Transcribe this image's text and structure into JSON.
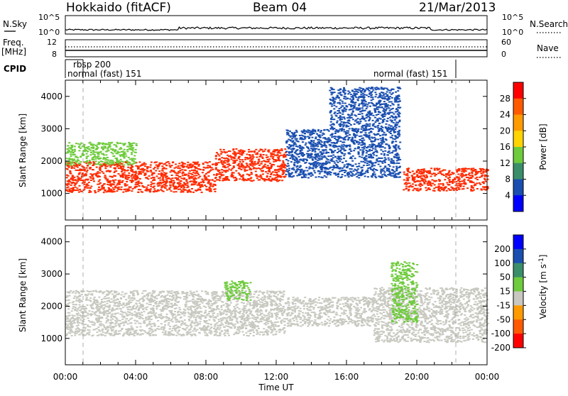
{
  "header": {
    "radar": "Hokkaido (fitACF)",
    "beam": "Beam 04",
    "date": "21/Mar/2013"
  },
  "noise_panel": {
    "left_label": "N.Sky",
    "right_label": "N.Search",
    "left_ticks": [
      "10^5",
      "10^0"
    ],
    "right_ticks": [
      "10^5",
      "10^0"
    ]
  },
  "freq_panel": {
    "left_label_top": "Freq.",
    "left_label_unit": "[MHz]",
    "left_ticks": [
      "12",
      "8"
    ],
    "right_label": "Nave",
    "right_ticks": [
      "60",
      "0"
    ]
  },
  "cpid_panel": {
    "label": "CPID",
    "segments": [
      {
        "name": "normal (fast) 151",
        "start_hour": 0.0
      },
      {
        "name": "rbsp 200",
        "start_hour": 1.0
      },
      {
        "name": "normal (fast) 151",
        "start_hour": 21.9
      }
    ]
  },
  "chart_data": [
    {
      "type": "heatmap",
      "parameter": "Power",
      "ylabel": "Slant Range [km]",
      "yticks": [
        1000,
        2000,
        3000,
        4000
      ],
      "ylim": [
        180,
        4500
      ],
      "xlim": [
        0,
        24
      ],
      "colorbar": {
        "label": "Power [dB]",
        "ticks": [
          "28",
          "24",
          "20",
          "16",
          "12",
          "8",
          "4"
        ],
        "colors": [
          "#ff0000",
          "#ff5a00",
          "#ff9a00",
          "#ffd400",
          "#6ecb3c",
          "#3a8f6a",
          "#1a4fb0",
          "#0000ff"
        ]
      },
      "regions": [
        {
          "level": "strong",
          "color": "#ff2a00",
          "time_start": 0.0,
          "time_end": 8.5,
          "range_start": 1050,
          "range_end": 2000
        },
        {
          "level": "strong",
          "color": "#ff2a00",
          "time_start": 8.5,
          "time_end": 12.5,
          "range_start": 1400,
          "range_end": 2400
        },
        {
          "level": "strong",
          "color": "#ff2a00",
          "time_start": 19.2,
          "time_end": 24.0,
          "range_start": 1100,
          "range_end": 1800
        },
        {
          "level": "medium",
          "color": "#6ecb3c",
          "time_start": 0.0,
          "time_end": 4.0,
          "range_start": 1900,
          "range_end": 2600
        },
        {
          "level": "weak",
          "color": "#1a4fb0",
          "time_start": 12.5,
          "time_end": 19.0,
          "range_start": 1500,
          "range_end": 3000
        },
        {
          "level": "weak",
          "color": "#1a4fb0",
          "time_start": 15.0,
          "time_end": 19.0,
          "range_start": 3000,
          "range_end": 4300
        }
      ]
    },
    {
      "type": "heatmap",
      "parameter": "Velocity",
      "ylabel": "Slant Range [km]",
      "yticks": [
        1000,
        2000,
        3000,
        4000
      ],
      "ylim": [
        180,
        4500
      ],
      "xlim": [
        0,
        24
      ],
      "xlabel": "Time UT",
      "xticks": [
        "00:00",
        "04:00",
        "08:00",
        "12:00",
        "16:00",
        "20:00",
        "00:00"
      ],
      "colorbar": {
        "label": "Velocity [m s^-1]",
        "ticks": [
          "200",
          "100",
          "50",
          "15",
          "-15",
          "-50",
          "-100",
          "-200"
        ],
        "colors": [
          "#0000ff",
          "#1a4fb0",
          "#3a8f6a",
          "#6ecb3c",
          "#c8c8c0",
          "#ff9a00",
          "#ff5a00",
          "#ff0000"
        ]
      },
      "regions": [
        {
          "level": "ground",
          "color": "#c8c8c0",
          "time_start": 0.0,
          "time_end": 12.5,
          "range_start": 1100,
          "range_end": 2500
        },
        {
          "level": "ground",
          "color": "#c8c8c0",
          "time_start": 12.5,
          "time_end": 17.5,
          "range_start": 1400,
          "range_end": 2300
        },
        {
          "level": "ground",
          "color": "#c8c8c0",
          "time_start": 17.5,
          "time_end": 24.0,
          "range_start": 900,
          "range_end": 2600
        },
        {
          "level": "positive",
          "color": "#6ecb3c",
          "time_start": 9.0,
          "time_end": 10.5,
          "range_start": 2200,
          "range_end": 2800
        },
        {
          "level": "positive",
          "color": "#6ecb3c",
          "time_start": 18.5,
          "time_end": 20.0,
          "range_start": 1500,
          "range_end": 3400
        }
      ]
    }
  ]
}
